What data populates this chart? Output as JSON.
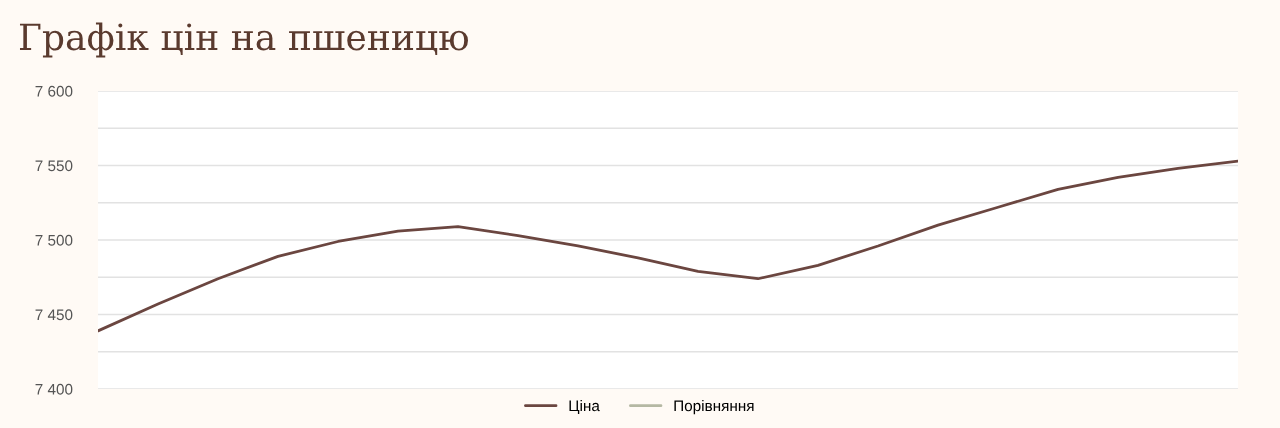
{
  "chart_data": {
    "type": "line",
    "title": "Графік цін на пшеницю",
    "categories": [
      null,
      null,
      null,
      null,
      null,
      null,
      null,
      null,
      null,
      null,
      null,
      null,
      null,
      null,
      null,
      null,
      null,
      null,
      null,
      null
    ],
    "series": [
      {
        "name": "Ціна",
        "color": "#6b4640",
        "values": [
          7439,
          7457,
          7474,
          7489,
          7499,
          7506,
          7509,
          7503,
          7496,
          7488,
          7479,
          7474,
          7483,
          7496,
          7510,
          7522,
          7534,
          7542,
          7548,
          7553
        ]
      },
      {
        "name": "Порівняння",
        "color": "#b5b8a3",
        "values": [
          null,
          null,
          null,
          null,
          null,
          null,
          null,
          null,
          null,
          null,
          null,
          null,
          null,
          null,
          null,
          null,
          null,
          null,
          null,
          null
        ]
      }
    ],
    "ylim": [
      7400,
      7600
    ],
    "yticks": [
      {
        "value": 7400,
        "label": "7 400"
      },
      {
        "value": 7425,
        "label": null
      },
      {
        "value": 7450,
        "label": "7 450"
      },
      {
        "value": 7475,
        "label": null
      },
      {
        "value": 7500,
        "label": "7 500"
      },
      {
        "value": 7525,
        "label": null
      },
      {
        "value": 7550,
        "label": "7 550"
      },
      {
        "value": 7575,
        "label": null
      },
      {
        "value": 7600,
        "label": "7 600"
      }
    ],
    "grid": "y",
    "legend": "bottom",
    "marker": "none",
    "line_style": "solid"
  }
}
